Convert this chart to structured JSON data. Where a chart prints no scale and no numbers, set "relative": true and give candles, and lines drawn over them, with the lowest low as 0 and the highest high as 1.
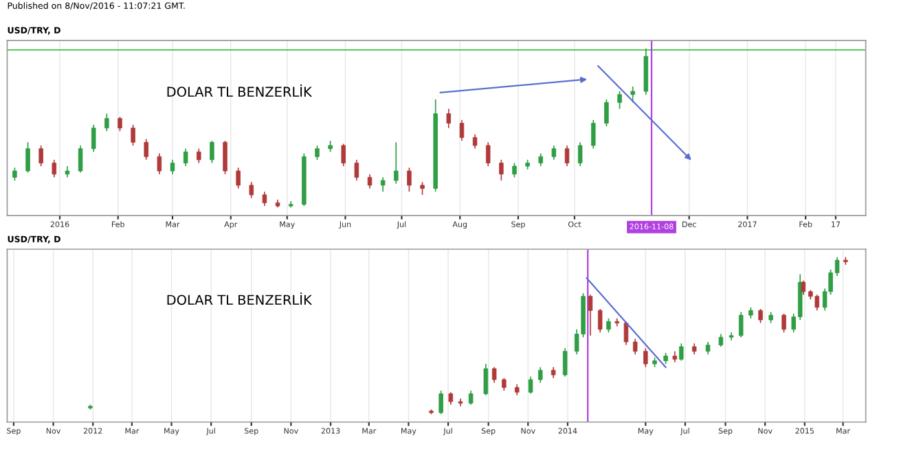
{
  "chart_data": [
    {
      "type": "candlestick",
      "title": "USD/TRY, D",
      "relative": true,
      "grid": "x",
      "legend": false,
      "annotations": [
        "DOLAR TL BENZERLİK",
        "Published on 8/Nov/2016 - 11:07:21 GMT."
      ],
      "x": [
        "2015-12-08",
        "2015-12-15",
        "2015-12-22",
        "2015-12-29",
        "2016-01-05",
        "2016-01-12",
        "2016-01-19",
        "2016-01-26",
        "2016-02-02",
        "2016-02-09",
        "2016-02-16",
        "2016-02-23",
        "2016-03-01",
        "2016-03-08",
        "2016-03-15",
        "2016-03-22",
        "2016-03-29",
        "2016-04-05",
        "2016-04-12",
        "2016-04-19",
        "2016-04-26",
        "2016-05-03",
        "2016-05-10",
        "2016-05-17",
        "2016-05-24",
        "2016-05-31",
        "2016-06-07",
        "2016-06-14",
        "2016-06-21",
        "2016-06-28",
        "2016-07-05",
        "2016-07-12",
        "2016-07-19",
        "2016-07-26",
        "2016-08-02",
        "2016-08-09",
        "2016-08-16",
        "2016-08-23",
        "2016-08-30",
        "2016-09-06",
        "2016-09-13",
        "2016-09-20",
        "2016-09-27",
        "2016-10-04",
        "2016-10-11",
        "2016-10-18",
        "2016-10-25",
        "2016-11-01",
        "2016-11-08"
      ],
      "ohlc": [
        [
          0.19,
          0.25,
          0.17,
          0.23
        ],
        [
          0.23,
          0.41,
          0.22,
          0.37
        ],
        [
          0.37,
          0.39,
          0.26,
          0.28
        ],
        [
          0.28,
          0.3,
          0.19,
          0.21
        ],
        [
          0.21,
          0.26,
          0.19,
          0.23
        ],
        [
          0.23,
          0.39,
          0.22,
          0.37
        ],
        [
          0.37,
          0.52,
          0.35,
          0.5
        ],
        [
          0.5,
          0.59,
          0.48,
          0.56
        ],
        [
          0.56,
          0.57,
          0.48,
          0.5
        ],
        [
          0.5,
          0.52,
          0.39,
          0.41
        ],
        [
          0.41,
          0.43,
          0.3,
          0.32
        ],
        [
          0.32,
          0.34,
          0.21,
          0.23
        ],
        [
          0.23,
          0.3,
          0.21,
          0.28
        ],
        [
          0.28,
          0.37,
          0.26,
          0.35
        ],
        [
          0.35,
          0.37,
          0.28,
          0.3
        ],
        [
          0.3,
          0.42,
          0.28,
          0.41
        ],
        [
          0.41,
          0.42,
          0.21,
          0.23
        ],
        [
          0.23,
          0.25,
          0.12,
          0.14
        ],
        [
          0.14,
          0.16,
          0.06,
          0.08
        ],
        [
          0.08,
          0.1,
          0.01,
          0.03
        ],
        [
          0.03,
          0.05,
          0,
          0.01
        ],
        [
          0.01,
          0.04,
          0,
          0.02
        ],
        [
          0.02,
          0.34,
          0.01,
          0.32
        ],
        [
          0.32,
          0.39,
          0.3,
          0.37
        ],
        [
          0.37,
          0.42,
          0.35,
          0.39
        ],
        [
          0.39,
          0.4,
          0.26,
          0.28
        ],
        [
          0.28,
          0.3,
          0.17,
          0.19
        ],
        [
          0.19,
          0.21,
          0.12,
          0.14
        ],
        [
          0.14,
          0.19,
          0.1,
          0.17
        ],
        [
          0.17,
          0.41,
          0.15,
          0.23
        ],
        [
          0.23,
          0.25,
          0.1,
          0.14
        ],
        [
          0.14,
          0.16,
          0.08,
          0.12
        ],
        [
          0.12,
          0.68,
          0.1,
          0.59
        ],
        [
          0.59,
          0.62,
          0.5,
          0.53
        ],
        [
          0.53,
          0.55,
          0.42,
          0.44
        ],
        [
          0.44,
          0.46,
          0.37,
          0.39
        ],
        [
          0.39,
          0.41,
          0.26,
          0.28
        ],
        [
          0.28,
          0.3,
          0.17,
          0.21
        ],
        [
          0.21,
          0.28,
          0.19,
          0.26
        ],
        [
          0.26,
          0.3,
          0.24,
          0.28
        ],
        [
          0.28,
          0.34,
          0.26,
          0.32
        ],
        [
          0.32,
          0.39,
          0.3,
          0.37
        ],
        [
          0.37,
          0.39,
          0.26,
          0.28
        ],
        [
          0.28,
          0.41,
          0.26,
          0.39
        ],
        [
          0.39,
          0.55,
          0.37,
          0.53
        ],
        [
          0.53,
          0.68,
          0.51,
          0.66
        ],
        [
          0.66,
          0.73,
          0.62,
          0.71
        ],
        [
          0.71,
          0.76,
          0.66,
          0.73
        ],
        [
          0.73,
          1,
          0.71,
          0.95
        ]
      ],
      "colors": [
        "#2f9e44",
        "#2f9e44",
        "#b03a3a",
        "#b03a3a",
        "#2f9e44",
        "#2f9e44",
        "#2f9e44",
        "#2f9e44",
        "#b03a3a",
        "#b03a3a",
        "#b03a3a",
        "#b03a3a",
        "#2f9e44",
        "#2f9e44",
        "#b03a3a",
        "#2f9e44",
        "#b03a3a",
        "#b03a3a",
        "#b03a3a",
        "#b03a3a",
        "#b03a3a",
        "#2f9e44",
        "#2f9e44",
        "#2f9e44",
        "#2f9e44",
        "#b03a3a",
        "#b03a3a",
        "#b03a3a",
        "#2f9e44",
        "#2f9e44",
        "#b03a3a",
        "#b03a3a",
        "#2f9e44",
        "#b03a3a",
        "#b03a3a",
        "#b03a3a",
        "#b03a3a",
        "#b03a3a",
        "#2f9e44",
        "#2f9e44",
        "#2f9e44",
        "#2f9e44",
        "#b03a3a",
        "#2f9e44",
        "#2f9e44",
        "#2f9e44",
        "#2f9e44",
        "#2f9e44",
        "#2f9e44"
      ],
      "xlim": [
        "2015-12-04",
        "2017-03-05"
      ],
      "xticks": [
        {
          "value": "2016-01-01",
          "label": "2016"
        },
        {
          "value": "2016-02-01",
          "label": "Feb"
        },
        {
          "value": "2016-03-01",
          "label": "Mar"
        },
        {
          "value": "2016-04-01",
          "label": "Apr"
        },
        {
          "value": "2016-05-01",
          "label": "May"
        },
        {
          "value": "2016-06-01",
          "label": "Jun"
        },
        {
          "value": "2016-07-01",
          "label": "Jul"
        },
        {
          "value": "2016-08-01",
          "label": "Aug"
        },
        {
          "value": "2016-09-01",
          "label": "Sep"
        },
        {
          "value": "2016-10-01",
          "label": "Oct"
        },
        {
          "value": "2016-12-01",
          "label": "Dec"
        },
        {
          "value": "2017-01-01",
          "label": "2017"
        },
        {
          "value": "2017-02-01",
          "label": "Feb"
        },
        {
          "value": "2017-02-17",
          "label": "17"
        }
      ],
      "ref_lines": [
        {
          "axis": "y",
          "value": 0.99,
          "color": "#22bb22"
        },
        {
          "axis": "x",
          "value": "2016-11-11",
          "label": "2016-11-08",
          "color": "#b040e0"
        }
      ]
    },
    {
      "type": "candlestick",
      "title": "USD/TRY, D",
      "relative": true,
      "grid": "x",
      "legend": false,
      "annotations": [
        "DOLAR TL BENZERLİK"
      ],
      "x": [
        "2011-12-28",
        "2013-06-05",
        "2013-06-20",
        "2013-07-05",
        "2013-07-20",
        "2013-08-05",
        "2013-08-28",
        "2013-09-10",
        "2013-09-25",
        "2013-10-15",
        "2013-11-05",
        "2013-11-20",
        "2013-12-10",
        "2013-12-28",
        "2014-01-15",
        "2014-01-25",
        "2014-02-05",
        "2014-02-20",
        "2014-03-05",
        "2014-03-18",
        "2014-04-01",
        "2014-04-15",
        "2014-05-01",
        "2014-05-15",
        "2014-06-01",
        "2014-06-15",
        "2014-06-25",
        "2014-07-15",
        "2014-08-05",
        "2014-08-25",
        "2014-09-10",
        "2014-09-25",
        "2014-10-10",
        "2014-10-25",
        "2014-11-10",
        "2014-11-30",
        "2014-12-15",
        "2014-12-25",
        "2014-12-30",
        "2015-01-10",
        "2015-01-20",
        "2015-02-01",
        "2015-02-10",
        "2015-02-20",
        "2015-03-05"
      ],
      "ohlc": [
        [
          0.04,
          0.06,
          0.03,
          0.05
        ],
        [
          0.02,
          0.03,
          0,
          0.01
        ],
        [
          0.01,
          0.15,
          0,
          0.13
        ],
        [
          0.13,
          0.14,
          0.06,
          0.08
        ],
        [
          0.08,
          0.1,
          0.05,
          0.07
        ],
        [
          0.07,
          0.15,
          0.06,
          0.13
        ],
        [
          0.13,
          0.32,
          0.12,
          0.29
        ],
        [
          0.29,
          0.3,
          0.2,
          0.22
        ],
        [
          0.22,
          0.23,
          0.15,
          0.17
        ],
        [
          0.17,
          0.19,
          0.12,
          0.14
        ],
        [
          0.14,
          0.24,
          0.13,
          0.22
        ],
        [
          0.22,
          0.3,
          0.2,
          0.28
        ],
        [
          0.28,
          0.3,
          0.23,
          0.25
        ],
        [
          0.25,
          0.42,
          0.24,
          0.4
        ],
        [
          0.4,
          0.54,
          0.38,
          0.51
        ],
        [
          0.51,
          0.77,
          0.49,
          0.75
        ],
        [
          0.75,
          0.76,
          0.5,
          0.66
        ],
        [
          0.66,
          0.67,
          0.52,
          0.54
        ],
        [
          0.54,
          0.61,
          0.52,
          0.59
        ],
        [
          0.59,
          0.61,
          0.56,
          0.58
        ],
        [
          0.58,
          0.59,
          0.44,
          0.46
        ],
        [
          0.46,
          0.48,
          0.38,
          0.4
        ],
        [
          0.4,
          0.42,
          0.3,
          0.32
        ],
        [
          0.32,
          0.36,
          0.3,
          0.34
        ],
        [
          0.34,
          0.39,
          0.32,
          0.37
        ],
        [
          0.37,
          0.4,
          0.33,
          0.35
        ],
        [
          0.35,
          0.45,
          0.34,
          0.43
        ],
        [
          0.43,
          0.45,
          0.38,
          0.4
        ],
        [
          0.4,
          0.46,
          0.38,
          0.44
        ],
        [
          0.44,
          0.51,
          0.43,
          0.49
        ],
        [
          0.49,
          0.52,
          0.47,
          0.5
        ],
        [
          0.5,
          0.65,
          0.49,
          0.63
        ],
        [
          0.63,
          0.68,
          0.61,
          0.66
        ],
        [
          0.66,
          0.67,
          0.58,
          0.6
        ],
        [
          0.6,
          0.65,
          0.58,
          0.63
        ],
        [
          0.63,
          0.64,
          0.52,
          0.54
        ],
        [
          0.54,
          0.64,
          0.52,
          0.62
        ],
        [
          0.62,
          0.89,
          0.6,
          0.84
        ],
        [
          0.84,
          0.85,
          0.76,
          0.78
        ],
        [
          0.78,
          0.79,
          0.73,
          0.75
        ],
        [
          0.75,
          0.76,
          0.66,
          0.68
        ],
        [
          0.68,
          0.8,
          0.66,
          0.78
        ],
        [
          0.78,
          0.92,
          0.76,
          0.9
        ],
        [
          0.9,
          1,
          0.88,
          0.98
        ],
        [
          0.98,
          1,
          0.95,
          0.97
        ]
      ],
      "colors": [
        "#2f9e44",
        "#b03a3a",
        "#2f9e44",
        "#b03a3a",
        "#b03a3a",
        "#2f9e44",
        "#2f9e44",
        "#b03a3a",
        "#b03a3a",
        "#b03a3a",
        "#2f9e44",
        "#2f9e44",
        "#b03a3a",
        "#2f9e44",
        "#2f9e44",
        "#2f9e44",
        "#b03a3a",
        "#b03a3a",
        "#2f9e44",
        "#b03a3a",
        "#b03a3a",
        "#b03a3a",
        "#b03a3a",
        "#2f9e44",
        "#2f9e44",
        "#b03a3a",
        "#2f9e44",
        "#b03a3a",
        "#2f9e44",
        "#2f9e44",
        "#2f9e44",
        "#2f9e44",
        "#2f9e44",
        "#b03a3a",
        "#2f9e44",
        "#b03a3a",
        "#2f9e44",
        "#2f9e44",
        "#b03a3a",
        "#b03a3a",
        "#b03a3a",
        "#2f9e44",
        "#2f9e44",
        "#2f9e44",
        "#b03a3a"
      ],
      "xlim": [
        "2011-08-22",
        "2015-04-05"
      ],
      "xticks": [
        {
          "value": "2011-09-01",
          "label": "Sep"
        },
        {
          "value": "2011-11-01",
          "label": "Nov"
        },
        {
          "value": "2012-01-01",
          "label": "2012"
        },
        {
          "value": "2012-03-01",
          "label": "Mar"
        },
        {
          "value": "2012-05-01",
          "label": "May"
        },
        {
          "value": "2012-07-01",
          "label": "Jul"
        },
        {
          "value": "2012-09-01",
          "label": "Sep"
        },
        {
          "value": "2012-11-01",
          "label": "Nov"
        },
        {
          "value": "2013-01-01",
          "label": "2013"
        },
        {
          "value": "2013-03-01",
          "label": "Mar"
        },
        {
          "value": "2013-05-01",
          "label": "May"
        },
        {
          "value": "2013-07-01",
          "label": "Jul"
        },
        {
          "value": "2013-09-01",
          "label": "Sep"
        },
        {
          "value": "2013-11-01",
          "label": "Nov"
        },
        {
          "value": "2014-01-01",
          "label": "2014"
        },
        {
          "value": "2014-05-01",
          "label": "May"
        },
        {
          "value": "2014-07-01",
          "label": "Jul"
        },
        {
          "value": "2014-09-01",
          "label": "Sep"
        },
        {
          "value": "2014-11-01",
          "label": "Nov"
        },
        {
          "value": "2015-01-01",
          "label": "2015"
        },
        {
          "value": "2015-03-01",
          "label": "Mar"
        }
      ],
      "ref_lines": [
        {
          "axis": "x",
          "value": "2014-02-01",
          "color": "#b040e0"
        }
      ]
    }
  ]
}
